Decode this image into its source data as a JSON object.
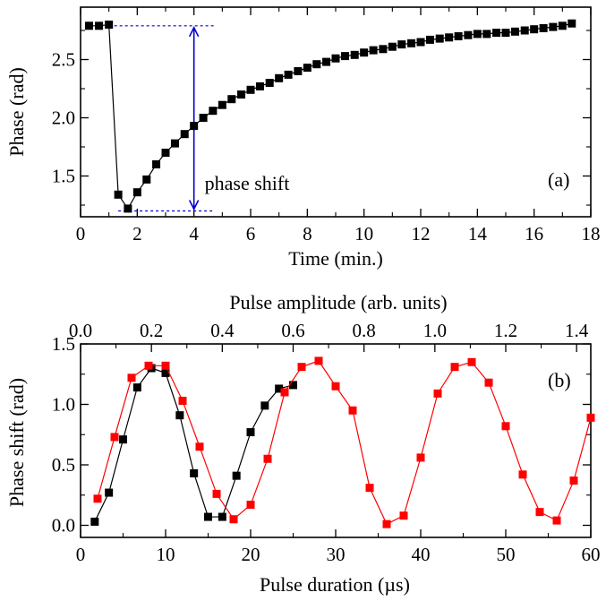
{
  "chart_data": [
    {
      "panel_label": "(a)",
      "type": "line",
      "xlabel": "Time (min.)",
      "ylabel": "Phase (rad)",
      "xlim": [
        0,
        18
      ],
      "ylim": [
        1.15,
        2.95
      ],
      "xticks": [
        "0",
        "2",
        "4",
        "6",
        "8",
        "10",
        "12",
        "14",
        "16",
        "18"
      ],
      "yticks": [
        "1.5",
        "2.0",
        "2.5"
      ],
      "ytick_values": [
        1.5,
        2.0,
        2.5
      ],
      "grid": false,
      "annotation": {
        "text": "phase shift",
        "color": "#0000cc",
        "x": 4.0,
        "y_top": 2.79,
        "y_bottom": 1.2
      },
      "series": [
        {
          "color": "#000000",
          "x": [
            0.3,
            0.65,
            1.0,
            1.33,
            1.67,
            2.0,
            2.33,
            2.67,
            3.0,
            3.33,
            3.67,
            4.0,
            4.33,
            4.67,
            5.0,
            5.33,
            5.67,
            6.0,
            6.33,
            6.67,
            7.0,
            7.33,
            7.67,
            8.0,
            8.33,
            8.67,
            9.0,
            9.33,
            9.67,
            10.0,
            10.33,
            10.67,
            11.0,
            11.33,
            11.67,
            12.0,
            12.33,
            12.67,
            13.0,
            13.33,
            13.67,
            14.0,
            14.33,
            14.67,
            15.0,
            15.33,
            15.67,
            16.0,
            16.33,
            16.67,
            17.0,
            17.33
          ],
          "y": [
            2.79,
            2.79,
            2.8,
            1.34,
            1.22,
            1.36,
            1.47,
            1.6,
            1.7,
            1.78,
            1.86,
            1.93,
            2.0,
            2.06,
            2.11,
            2.16,
            2.2,
            2.24,
            2.27,
            2.3,
            2.34,
            2.37,
            2.4,
            2.43,
            2.46,
            2.48,
            2.51,
            2.53,
            2.54,
            2.56,
            2.58,
            2.59,
            2.61,
            2.63,
            2.64,
            2.65,
            2.67,
            2.68,
            2.69,
            2.7,
            2.71,
            2.72,
            2.72,
            2.73,
            2.73,
            2.74,
            2.75,
            2.76,
            2.77,
            2.78,
            2.79,
            2.81
          ]
        }
      ]
    },
    {
      "panel_label": "(b)",
      "type": "line",
      "xlabel": "Pulse duration (µs)",
      "xlabel_color": "#ff0000",
      "x2label": "Pulse amplitude (arb. units)",
      "ylabel": "Phase shift (rad)",
      "xlim": [
        0,
        60
      ],
      "x2lim": [
        0,
        1.44
      ],
      "ylim": [
        -0.1,
        1.5
      ],
      "xticks": [
        "0",
        "10",
        "20",
        "30",
        "40",
        "50",
        "60"
      ],
      "x2ticks": [
        "0.0",
        "0.2",
        "0.4",
        "0.6",
        "0.8",
        "1.0",
        "1.2",
        "1.4"
      ],
      "yticks": [
        "0.0",
        "0.5",
        "1.0",
        "1.5"
      ],
      "ytick_values": [
        0.0,
        0.5,
        1.0,
        1.5
      ],
      "grid": false,
      "series": [
        {
          "axis": "top",
          "color": "#000000",
          "x": [
            0.04,
            0.08,
            0.12,
            0.16,
            0.2,
            0.24,
            0.28,
            0.32,
            0.36,
            0.4,
            0.44,
            0.48,
            0.52,
            0.56,
            0.6
          ],
          "y": [
            0.03,
            0.27,
            0.71,
            1.14,
            1.3,
            1.26,
            0.91,
            0.43,
            0.07,
            0.07,
            0.41,
            0.77,
            0.99,
            1.13,
            1.16
          ]
        },
        {
          "axis": "bottom",
          "color": "#ff0000",
          "x": [
            2,
            4,
            6,
            8,
            10,
            12,
            14,
            16,
            18,
            20,
            22,
            24,
            26,
            28,
            30,
            32,
            34,
            36,
            38,
            40,
            42,
            44,
            46,
            48,
            50,
            52,
            54,
            56,
            58,
            60
          ],
          "y": [
            0.22,
            0.73,
            1.22,
            1.32,
            1.32,
            1.03,
            0.65,
            0.26,
            0.05,
            0.17,
            0.55,
            1.1,
            1.31,
            1.36,
            1.15,
            0.95,
            0.31,
            0.01,
            0.08,
            0.56,
            1.09,
            1.31,
            1.35,
            1.18,
            0.82,
            0.42,
            0.11,
            0.04,
            0.37,
            0.89
          ]
        }
      ]
    }
  ]
}
